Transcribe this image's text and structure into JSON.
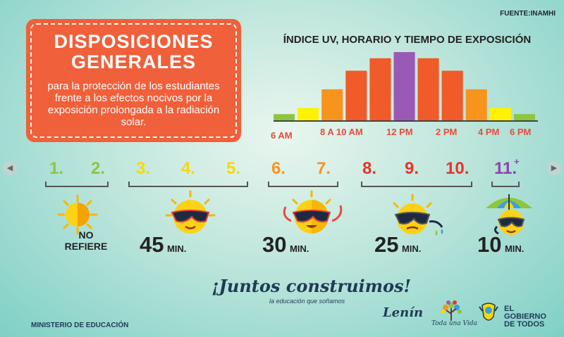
{
  "source": "FUENTE:INAMHI",
  "header": {
    "title": "DISPOSICIONES GENERALES",
    "body": "para la protección de los estudiantes frente a los efectos nocivos por la exposición prolongada a la radiación solar."
  },
  "chart_data": {
    "type": "bar",
    "title": "ÍNDICE UV, HORARIO Y TIEMPO DE EXPOSICIÓN",
    "tick_labels": [
      "6 AM",
      "8 A 10 AM",
      "12 PM",
      "2 PM",
      "4 PM",
      "6 PM"
    ],
    "uv_index": [
      1,
      2,
      5,
      8,
      10,
      11,
      10,
      8,
      5,
      2,
      1
    ],
    "colors": [
      "#8dc63f",
      "#fff200",
      "#f7941d",
      "#f15a29",
      "#f15a29",
      "#9b59b6",
      "#f15a29",
      "#f15a29",
      "#f7941d",
      "#fff200",
      "#8dc63f"
    ]
  },
  "levels": [
    {
      "label": "1.",
      "color": "#8dc63f"
    },
    {
      "label": "2.",
      "color": "#8dc63f"
    },
    {
      "label": "3.",
      "color": "#f5d90a"
    },
    {
      "label": "4.",
      "color": "#f5d90a"
    },
    {
      "label": "5.",
      "color": "#f5d90a"
    },
    {
      "label": "6.",
      "color": "#f7941d"
    },
    {
      "label": "7.",
      "color": "#f7941d"
    },
    {
      "label": "8.",
      "color": "#e2362d"
    },
    {
      "label": "9.",
      "color": "#e2362d"
    },
    {
      "label": "10.",
      "color": "#e2362d"
    },
    {
      "label": "11.",
      "color": "#8e44ad"
    }
  ],
  "exposure": {
    "no_refiere": "NO REFIERE",
    "min_label": "MIN.",
    "times": [
      "45",
      "30",
      "25",
      "10"
    ]
  },
  "footer": {
    "slogan": "¡Juntos construimos!",
    "subslogan": "la educación que soñamos",
    "ministry": "MINISTERIO DE EDUCACIÓN",
    "lenin": "Lenín",
    "toda": "Toda una Vida",
    "gobierno": [
      "EL",
      "GOBIERNO",
      "DE TODOS"
    ]
  }
}
